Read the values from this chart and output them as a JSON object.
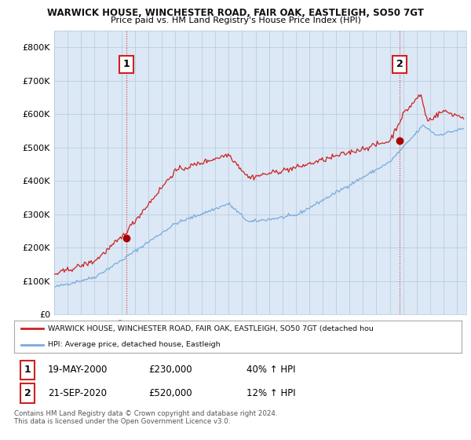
{
  "title": "WARWICK HOUSE, WINCHESTER ROAD, FAIR OAK, EASTLEIGH, SO50 7GT",
  "subtitle": "Price paid vs. HM Land Registry's House Price Index (HPI)",
  "legend_line1": "WARWICK HOUSE, WINCHESTER ROAD, FAIR OAK, EASTLEIGH, SO50 7GT (detached hou",
  "legend_line2": "HPI: Average price, detached house, Eastleigh",
  "transaction1_date": "19-MAY-2000",
  "transaction1_price": "£230,000",
  "transaction1_hpi": "40% ↑ HPI",
  "transaction2_date": "21-SEP-2020",
  "transaction2_price": "£520,000",
  "transaction2_hpi": "12% ↑ HPI",
  "footer": "Contains HM Land Registry data © Crown copyright and database right 2024.\nThis data is licensed under the Open Government Licence v3.0.",
  "hpi_color": "#7aaadd",
  "price_color": "#cc2222",
  "marker_color": "#aa0000",
  "annotation_box_color": "#cc2222",
  "background_color": "#ffffff",
  "plot_bg_color": "#dce8f5",
  "grid_color": "#b8cee0",
  "ylim": [
    0,
    850000
  ],
  "yticks": [
    0,
    100000,
    200000,
    300000,
    400000,
    500000,
    600000,
    700000,
    800000
  ],
  "ytick_labels": [
    "£0",
    "£100K",
    "£200K",
    "£300K",
    "£400K",
    "£500K",
    "£600K",
    "£700K",
    "£800K"
  ],
  "xmin": 1995.0,
  "xmax": 2025.7
}
